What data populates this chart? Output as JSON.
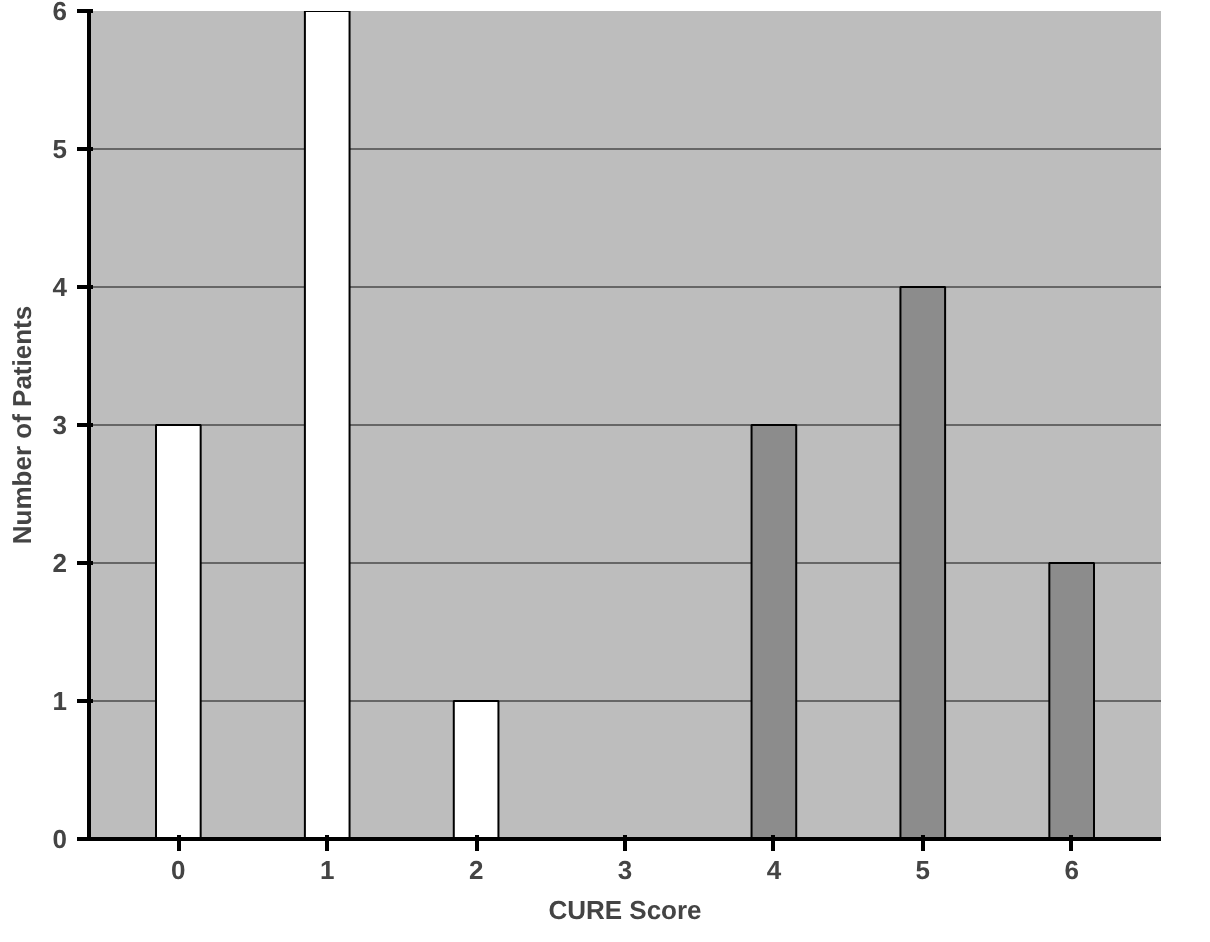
{
  "chart_data": {
    "type": "bar",
    "xlabel": "CURE Score",
    "ylabel": "Number of Patients",
    "categories": [
      "0",
      "1",
      "2",
      "3",
      "4",
      "5",
      "6"
    ],
    "values": [
      3,
      6,
      1,
      null,
      3,
      4,
      2
    ],
    "colors": [
      "#ffffff",
      "#ffffff",
      "#ffffff",
      null,
      "#8c8c8c",
      "#8c8c8c",
      "#8c8c8c"
    ],
    "ylim": [
      0,
      6
    ],
    "yticks": [
      0,
      1,
      2,
      3,
      4,
      5,
      6
    ],
    "grid": "y"
  }
}
